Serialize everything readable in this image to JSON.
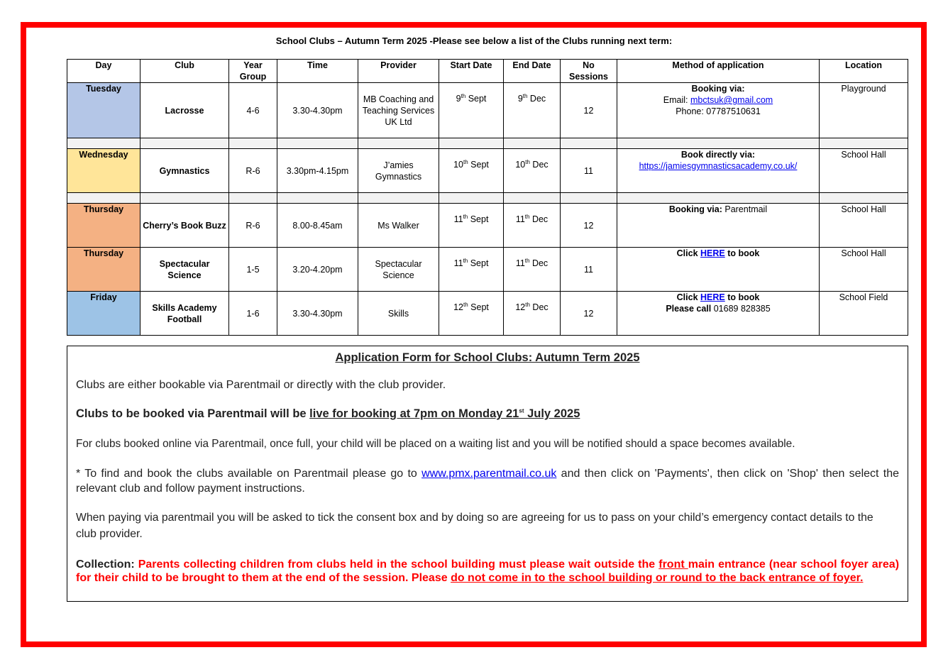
{
  "title": "School Clubs – Autumn Term 2025 -Please see below a list of the Clubs running next term:",
  "colors": {
    "border": "#ff0000",
    "tuesday": "#b4c6e7",
    "wednesday": "#ffe599",
    "thursday": "#f4b183",
    "friday": "#9dc3e6",
    "spacer": "#f2f2f2",
    "link": "#0000ee",
    "collection": "#ff0000"
  },
  "table": {
    "headers": [
      "Day",
      "Club",
      "Year Group",
      "Time",
      "Provider",
      "Start Date",
      "End Date",
      "No Sessions",
      "Method of application",
      "Location"
    ],
    "rows": [
      {
        "day": "Tuesday",
        "color": "#b4c6e7",
        "club": "Lacrosse",
        "year": "4-6",
        "time": "3.30-4.30pm",
        "provider": "MB Coaching and Teaching Services UK Ltd",
        "start": {
          "n": "9",
          "s": "th",
          "m": " Sept"
        },
        "end": {
          "n": "9",
          "s": "th",
          "m": " Dec"
        },
        "sessions": "12",
        "method": [
          [
            {
              "t": "Booking via:",
              "b": true
            }
          ],
          [
            {
              "t": "Email: "
            },
            {
              "t": "mbctsuk@gmail.com",
              "link": true
            }
          ],
          [
            {
              "t": "Phone: 07787510631"
            }
          ]
        ],
        "location": "Playground",
        "spacerAfter": true
      },
      {
        "day": "Wednesday",
        "color": "#ffe599",
        "club": "Gymnastics",
        "year": "R-6",
        "time": "3.30pm-4.15pm",
        "provider": "J’amies Gymnastics",
        "start": {
          "n": "10",
          "s": "th",
          "m": " Sept"
        },
        "end": {
          "n": "10",
          "s": "th",
          "m": " Dec"
        },
        "sessions": "11",
        "method": [
          [
            {
              "t": "Book directly via:",
              "b": true
            }
          ],
          [
            {
              "t": "https://jamiesgymnasticsacademy.co.uk/",
              "link": true
            }
          ]
        ],
        "location": "School Hall",
        "spacerAfter": true
      },
      {
        "day": "Thursday",
        "color": "#f4b183",
        "club": "Cherry’s Book Buzz",
        "year": "R-6",
        "time": "8.00-8.45am",
        "provider": "Ms Walker",
        "start": {
          "n": "11",
          "s": "th",
          "m": " Sept"
        },
        "end": {
          "n": "11",
          "s": "th",
          "m": " Dec"
        },
        "sessions": "12",
        "method": [
          [
            {
              "t": "Booking via: ",
              "b": true
            },
            {
              "t": "Parentmail"
            }
          ]
        ],
        "location": "School Hall"
      },
      {
        "day": "Thursday",
        "color": "#f4b183",
        "club": "Spectacular Science",
        "year": "1-5",
        "time": "3.20-4.20pm",
        "provider": "Spectacular Science",
        "start": {
          "n": "11",
          "s": "th",
          "m": " Sept"
        },
        "end": {
          "n": "11",
          "s": "th",
          "m": " Dec"
        },
        "sessions": "11",
        "method": [
          [
            {
              "t": "Click ",
              "b": true
            },
            {
              "t": "HERE",
              "b": true,
              "link": true
            },
            {
              "t": " to book",
              "b": true
            }
          ]
        ],
        "location": "School Hall"
      },
      {
        "day": "Friday",
        "color": "#9dc3e6",
        "club": "Skills Academy Football",
        "year": "1-6",
        "time": "3.30-4.30pm",
        "provider": "Skills",
        "start": {
          "n": "12",
          "s": "th",
          "m": " Sept"
        },
        "end": {
          "n": "12",
          "s": "th",
          "m": " Dec"
        },
        "sessions": "12",
        "method": [
          [
            {
              "t": "Click ",
              "b": true
            },
            {
              "t": "HERE",
              "b": true,
              "link": true
            },
            {
              "t": " to book",
              "b": true
            }
          ],
          [
            {
              "t": "Please call ",
              "b": true
            },
            {
              "t": "01689 828385"
            }
          ]
        ],
        "location": "School Field"
      }
    ]
  },
  "form": {
    "title": "Application Form for School Clubs: Autumn Term 2025",
    "p1": "Clubs are either bookable via Parentmail or directly with the club provider.",
    "p2_a": "Clubs to be booked via Parentmail will be ",
    "p2_b": "live for booking at 7pm on Monday 21",
    "p2_sup": "st",
    "p2_c": " July 2025",
    "p3": "For clubs booked online via Parentmail, once full, your child will be placed on a waiting list and you will be notified should a space becomes available.",
    "p4_a": "* To find and book the clubs available on Parentmail please go to ",
    "p4_link": "www.pmx.parentmail.co.uk",
    "p4_b": " and then click on 'Payments', then click on 'Shop' then select the relevant club and follow payment instructions.",
    "p5": "When paying via parentmail you will be asked to tick the consent box and by doing so are agreeing for us to pass on your child’s emergency contact details to the club provider.",
    "p6_label": "Collection: ",
    "p6_a": "Parents collecting children from clubs held in the school building must please wait outside the ",
    "p6_front": "front ",
    "p6_b": "main entrance (near school foyer area) for their child to be brought to them at the end of the session. Please ",
    "p6_c": "do not come in to the school building or round to the back entrance of foyer."
  }
}
